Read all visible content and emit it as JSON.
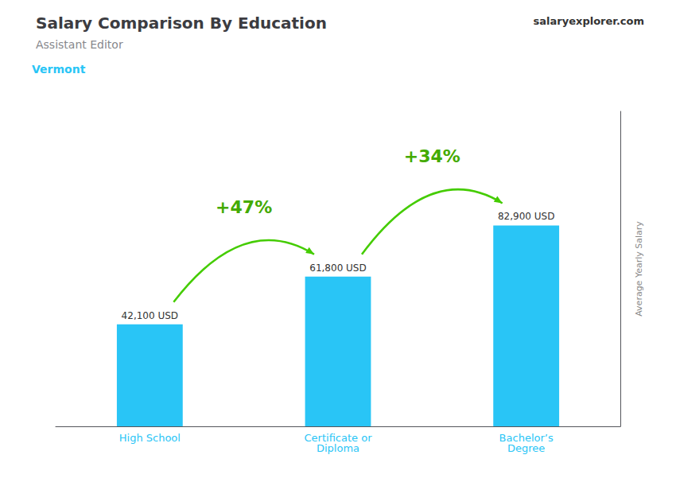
{
  "chart_data": {
    "type": "bar",
    "title": "Salary Comparison By Education",
    "subtitle": "Assistant Editor",
    "ylabel": "Average Yearly Salary",
    "annotations": [
      "Vermont",
      "salaryexplorer.com",
      "+47%",
      "+34%"
    ],
    "categories": [
      "High School",
      "Certificate or\nDiploma",
      "Bachelor’s\nDegree"
    ],
    "values": [
      42100,
      61800,
      82900
    ],
    "value_labels": [
      "42,100 USD",
      "61,800 USD",
      "82,900 USD"
    ],
    "data_labels": true,
    "color": "#29c5f6",
    "ylim": [
      0,
      130000
    ],
    "tick_labels": "x",
    "grid": false
  }
}
